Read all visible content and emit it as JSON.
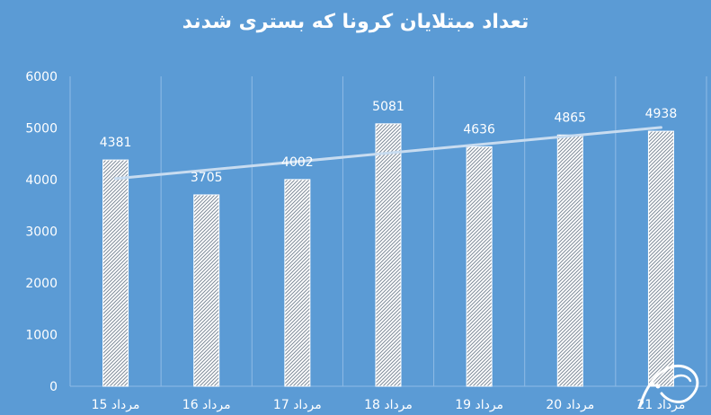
{
  "chart_data": {
    "type": "bar",
    "title": "تعداد مبتلایان کرونا که بستری شدند",
    "categories": [
      "15 مرداد",
      "16 مرداد",
      "17 مرداد",
      "18 مرداد",
      "19 مرداد",
      "20 مرداد",
      "21 مرداد"
    ],
    "values": [
      4381,
      3705,
      4002,
      5081,
      4636,
      4865,
      4938
    ],
    "ylim": [
      0,
      6000
    ],
    "yticks": [
      0,
      1000,
      2000,
      3000,
      4000,
      5000,
      6000
    ],
    "trendline": "linear",
    "grid": "vertical",
    "xlabel": "",
    "ylabel": "",
    "colors": {
      "background": "#5b9bd5",
      "bar_fill": "#ffffff",
      "bar_hatch": "#7f8c9a",
      "trendline": "#c8dcf0",
      "text": "#ffffff"
    }
  },
  "watermark_text": "آوید نیوز"
}
